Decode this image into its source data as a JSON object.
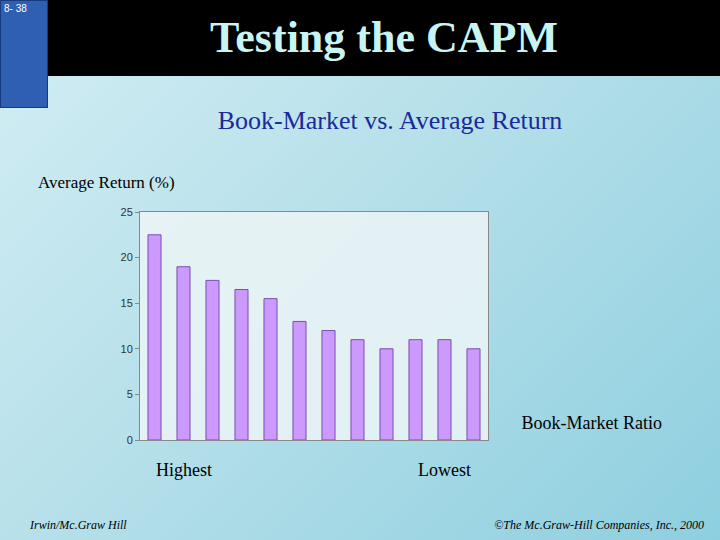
{
  "header": {
    "slide_number": "8- 38",
    "title": "Testing the CAPM"
  },
  "chart_data": {
    "type": "bar",
    "title": "Book-Market vs. Average Return",
    "y_label": "Average Return (%)",
    "x_label": "Book-Market Ratio",
    "categories": [
      null,
      null,
      null,
      null,
      null,
      null,
      null,
      null,
      null,
      null,
      null,
      null
    ],
    "values": [
      22.5,
      19,
      17.5,
      16.5,
      15.5,
      13,
      12,
      11,
      10,
      11,
      11,
      10
    ],
    "color": "#cc99ff",
    "ylim": [
      0,
      25
    ],
    "yticks": [
      0,
      5,
      10,
      15,
      20,
      25
    ],
    "grid": false,
    "tick_labels": "y",
    "annotations": [
      {
        "text": "Highest",
        "x": 1
      },
      {
        "text": "Lowest",
        "x": 10
      }
    ]
  },
  "footer": {
    "left": "Irwin/Mc.Graw Hill",
    "right": "©The Mc.Graw-Hill Companies, Inc., 2000"
  }
}
